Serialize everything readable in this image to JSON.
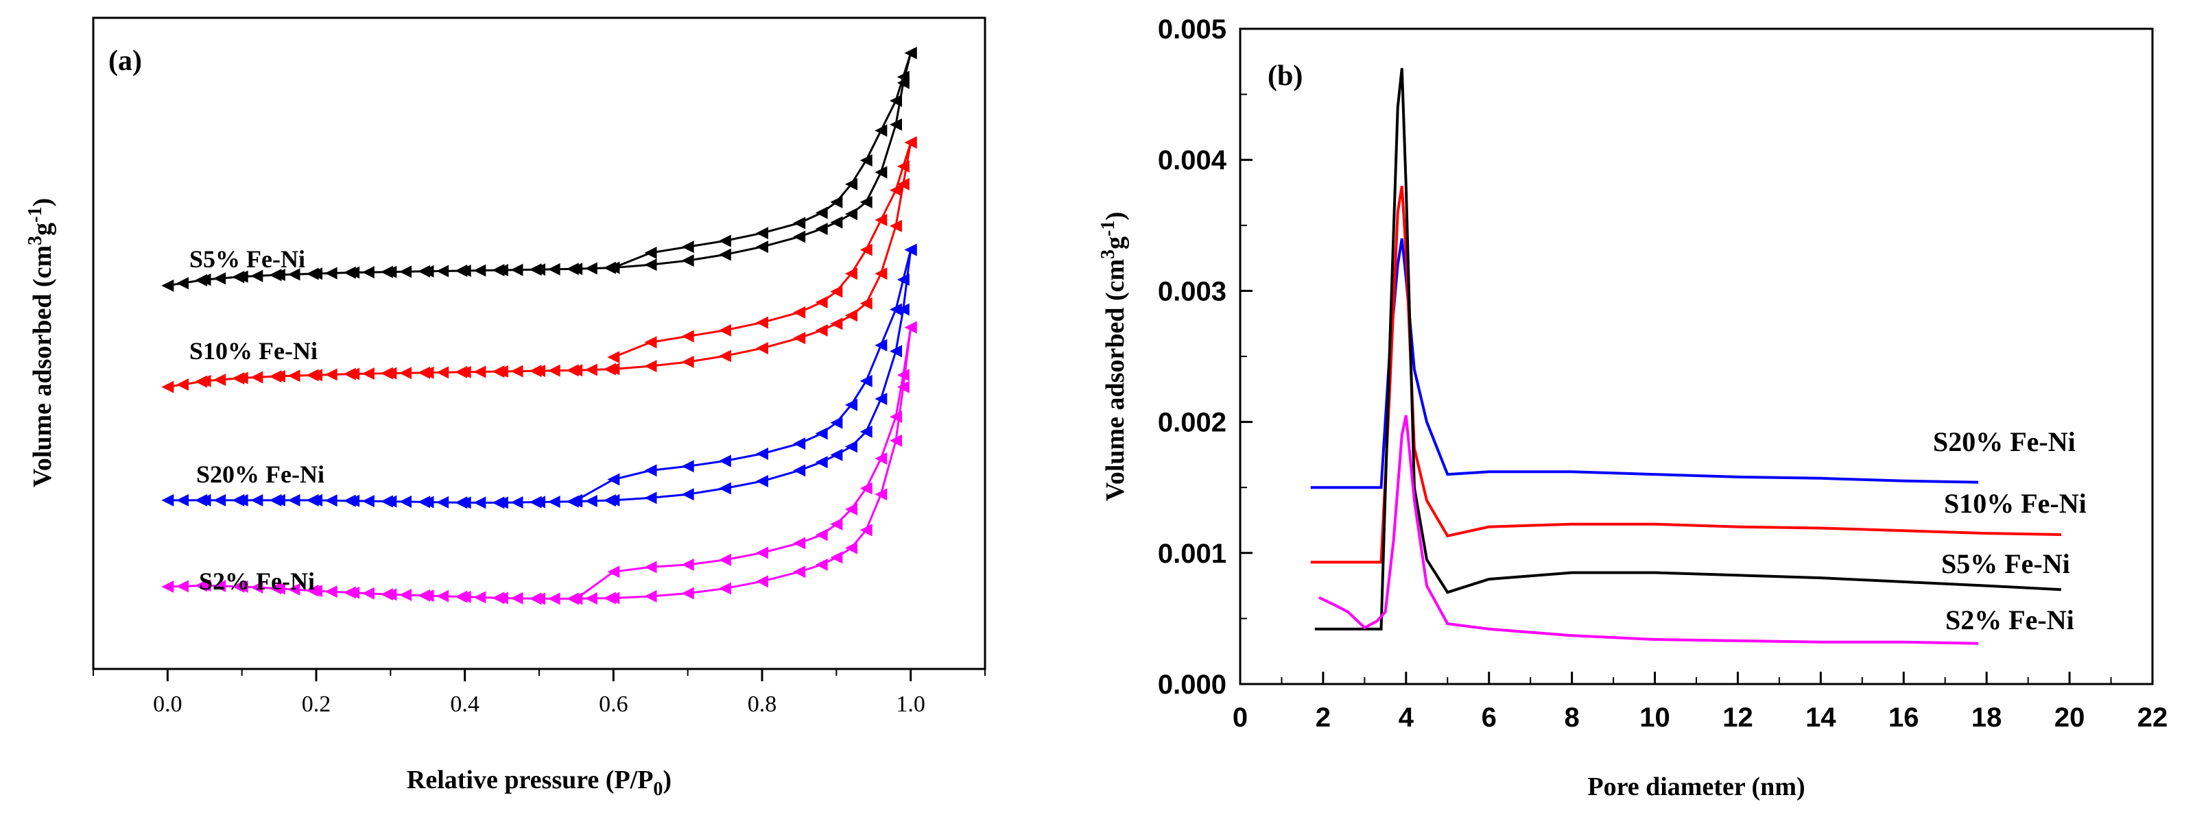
{
  "chart_data": [
    {
      "type": "line",
      "panel_label": "(a)",
      "xlabel": "Relative pressure (P/P",
      "xlabel_sub": "0",
      "xlabel_close": ")",
      "ylabel": "Volume adsorbed (cm",
      "ylabel_sup": "3",
      "ylabel_mid": "g",
      "ylabel_sup2": "-1",
      "ylabel_close": ")",
      "xlim": [
        -0.1,
        1.1
      ],
      "ylim": [
        0,
        1
      ],
      "x_ticks": [
        "0.0",
        "0.2",
        "0.4",
        "0.6",
        "0.8",
        "1.0"
      ],
      "x_tick_values": [
        0.0,
        0.2,
        0.4,
        0.6,
        0.8,
        1.0
      ],
      "y_tick_labels_shown": false,
      "markers": "triangle",
      "series": [
        {
          "name": "S5% Fe-Ni",
          "color": "#000000",
          "adsorption": {
            "x": [
              0.0,
              0.05,
              0.1,
              0.15,
              0.2,
              0.25,
              0.3,
              0.35,
              0.4,
              0.45,
              0.5,
              0.55,
              0.6,
              0.65,
              0.7,
              0.75,
              0.8,
              0.85,
              0.88,
              0.9,
              0.92,
              0.94,
              0.96,
              0.98,
              0.99,
              1.0
            ],
            "y": [
              0.59,
              0.6,
              0.605,
              0.608,
              0.61,
              0.612,
              0.613,
              0.614,
              0.615,
              0.616,
              0.617,
              0.618,
              0.62,
              0.625,
              0.632,
              0.642,
              0.655,
              0.672,
              0.685,
              0.696,
              0.71,
              0.73,
              0.78,
              0.86,
              0.93,
              0.98
            ]
          },
          "desorption": {
            "x": [
              1.0,
              0.99,
              0.98,
              0.96,
              0.94,
              0.92,
              0.9,
              0.88,
              0.85,
              0.8,
              0.75,
              0.7,
              0.65,
              0.6
            ],
            "y": [
              0.98,
              0.94,
              0.9,
              0.85,
              0.8,
              0.76,
              0.73,
              0.712,
              0.695,
              0.678,
              0.665,
              0.655,
              0.645,
              0.62
            ]
          }
        },
        {
          "name": "S10% Fe-Ni",
          "color": "#ff0000",
          "adsorption": {
            "x": [
              0.0,
              0.05,
              0.1,
              0.15,
              0.2,
              0.25,
              0.3,
              0.35,
              0.4,
              0.45,
              0.5,
              0.55,
              0.6,
              0.65,
              0.7,
              0.75,
              0.8,
              0.85,
              0.88,
              0.9,
              0.92,
              0.94,
              0.96,
              0.98,
              0.99,
              1.0
            ],
            "y": [
              0.42,
              0.43,
              0.435,
              0.438,
              0.44,
              0.442,
              0.443,
              0.444,
              0.445,
              0.446,
              0.447,
              0.448,
              0.45,
              0.455,
              0.462,
              0.472,
              0.485,
              0.502,
              0.515,
              0.526,
              0.54,
              0.56,
              0.61,
              0.69,
              0.76,
              0.83
            ]
          },
          "desorption": {
            "x": [
              1.0,
              0.99,
              0.98,
              0.96,
              0.94,
              0.92,
              0.9,
              0.88,
              0.85,
              0.8,
              0.75,
              0.7,
              0.65,
              0.6
            ],
            "y": [
              0.83,
              0.79,
              0.75,
              0.7,
              0.65,
              0.61,
              0.58,
              0.562,
              0.545,
              0.528,
              0.515,
              0.505,
              0.495,
              0.47
            ]
          }
        },
        {
          "name": "S20% Fe-Ni",
          "color": "#0000ff",
          "adsorption": {
            "x": [
              0.0,
              0.05,
              0.1,
              0.15,
              0.2,
              0.25,
              0.3,
              0.35,
              0.4,
              0.45,
              0.5,
              0.55,
              0.6,
              0.65,
              0.7,
              0.75,
              0.8,
              0.85,
              0.88,
              0.9,
              0.92,
              0.94,
              0.96,
              0.98,
              0.99,
              1.0
            ],
            "y": [
              0.23,
              0.23,
              0.23,
              0.23,
              0.23,
              0.229,
              0.228,
              0.227,
              0.226,
              0.226,
              0.227,
              0.228,
              0.23,
              0.234,
              0.24,
              0.25,
              0.262,
              0.28,
              0.294,
              0.306,
              0.32,
              0.345,
              0.4,
              0.48,
              0.55,
              0.65
            ]
          },
          "desorption": {
            "x": [
              1.0,
              0.99,
              0.98,
              0.96,
              0.94,
              0.92,
              0.9,
              0.88,
              0.85,
              0.8,
              0.75,
              0.7,
              0.65,
              0.6,
              0.55
            ],
            "y": [
              0.65,
              0.6,
              0.55,
              0.49,
              0.43,
              0.39,
              0.36,
              0.342,
              0.325,
              0.308,
              0.296,
              0.287,
              0.28,
              0.265,
              0.23
            ]
          }
        },
        {
          "name": "S2% Fe-Ni",
          "color": "#ff00ff",
          "adsorption": {
            "x": [
              0.0,
              0.05,
              0.1,
              0.15,
              0.2,
              0.25,
              0.3,
              0.35,
              0.4,
              0.45,
              0.5,
              0.55,
              0.6,
              0.65,
              0.7,
              0.75,
              0.8,
              0.85,
              0.88,
              0.9,
              0.92,
              0.94,
              0.96,
              0.98,
              0.99,
              1.0
            ],
            "y": [
              0.085,
              0.087,
              0.085,
              0.082,
              0.078,
              0.075,
              0.072,
              0.07,
              0.068,
              0.066,
              0.065,
              0.065,
              0.066,
              0.069,
              0.074,
              0.082,
              0.094,
              0.11,
              0.122,
              0.134,
              0.15,
              0.18,
              0.24,
              0.33,
              0.42,
              0.52
            ]
          },
          "desorption": {
            "x": [
              1.0,
              0.99,
              0.98,
              0.96,
              0.94,
              0.92,
              0.9,
              0.88,
              0.85,
              0.8,
              0.75,
              0.7,
              0.65,
              0.6,
              0.55
            ],
            "y": [
              0.52,
              0.44,
              0.37,
              0.3,
              0.25,
              0.215,
              0.19,
              0.172,
              0.158,
              0.142,
              0.13,
              0.122,
              0.118,
              0.11,
              0.065
            ]
          }
        }
      ]
    },
    {
      "type": "line",
      "panel_label": "(b)",
      "xlabel": "Pore diameter (nm)",
      "ylabel": "Volume adsorbed (cm",
      "ylabel_sup": "3",
      "ylabel_mid": "g",
      "ylabel_sup2": "-1",
      "ylabel_close": ")",
      "xlim": [
        0,
        22
      ],
      "ylim": [
        0,
        0.005
      ],
      "x_ticks": [
        "0",
        "2",
        "4",
        "6",
        "8",
        "10",
        "12",
        "14",
        "16",
        "18",
        "20",
        "22"
      ],
      "x_tick_values": [
        0,
        2,
        4,
        6,
        8,
        10,
        12,
        14,
        16,
        18,
        20,
        22
      ],
      "y_ticks": [
        "0.000",
        "0.001",
        "0.002",
        "0.003",
        "0.004",
        "0.005"
      ],
      "y_tick_values": [
        0,
        0.001,
        0.002,
        0.003,
        0.004,
        0.005
      ],
      "series": [
        {
          "name": "S20% Fe-Ni",
          "color": "#0000ff",
          "x": [
            1.7,
            3.4,
            3.6,
            3.8,
            3.9,
            4.0,
            4.2,
            4.5,
            5.0,
            6.0,
            8.0,
            10.0,
            12.0,
            14.0,
            16.0,
            17.8
          ],
          "y": [
            0.0015,
            0.0015,
            0.0025,
            0.0032,
            0.0034,
            0.0031,
            0.0024,
            0.002,
            0.0016,
            0.00162,
            0.00162,
            0.0016,
            0.00158,
            0.00157,
            0.00155,
            0.00154
          ]
        },
        {
          "name": "S10% Fe-Ni",
          "color": "#ff0000",
          "x": [
            1.7,
            3.4,
            3.6,
            3.8,
            3.9,
            4.0,
            4.2,
            4.5,
            5.0,
            6.0,
            8.0,
            10.0,
            12.0,
            14.0,
            16.0,
            18.0,
            19.8
          ],
          "y": [
            0.00093,
            0.00093,
            0.0022,
            0.0036,
            0.0038,
            0.0033,
            0.0018,
            0.0014,
            0.00113,
            0.0012,
            0.00122,
            0.00122,
            0.0012,
            0.00119,
            0.00117,
            0.00115,
            0.00114
          ]
        },
        {
          "name": "S5% Fe-Ni",
          "color": "#000000",
          "x": [
            1.8,
            3.4,
            3.6,
            3.8,
            3.9,
            4.0,
            4.2,
            4.5,
            5.0,
            6.0,
            8.0,
            10.0,
            12.0,
            14.0,
            16.0,
            18.0,
            19.8
          ],
          "y": [
            0.00042,
            0.00042,
            0.0025,
            0.0044,
            0.0047,
            0.0038,
            0.0015,
            0.00095,
            0.0007,
            0.0008,
            0.00085,
            0.00085,
            0.00083,
            0.00081,
            0.00078,
            0.00075,
            0.00072
          ]
        },
        {
          "name": "S2% Fe-Ni",
          "color": "#ff00ff",
          "x": [
            1.9,
            2.3,
            2.6,
            3.0,
            3.3,
            3.5,
            3.7,
            3.9,
            4.0,
            4.2,
            4.5,
            5.0,
            6.0,
            8.0,
            10.0,
            12.0,
            14.0,
            16.0,
            17.8
          ],
          "y": [
            0.00066,
            0.0006,
            0.00055,
            0.00043,
            0.00048,
            0.00055,
            0.0011,
            0.0019,
            0.00205,
            0.0014,
            0.00075,
            0.00046,
            0.00042,
            0.00037,
            0.00034,
            0.00033,
            0.00032,
            0.00032,
            0.00031
          ]
        }
      ]
    }
  ]
}
